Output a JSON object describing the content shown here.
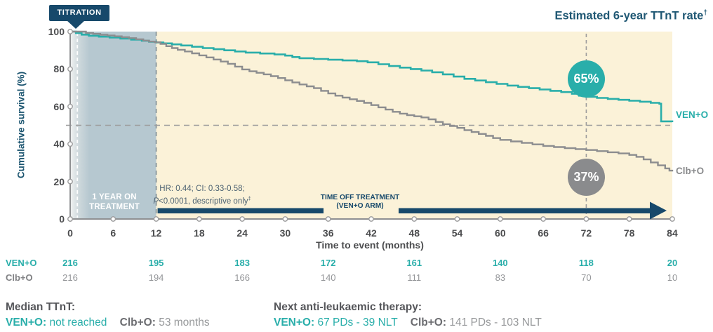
{
  "header": {
    "titration_label": "TITRATION",
    "estimate_title": "Estimated 6-year TTnT rate",
    "estimate_title_sup": "†"
  },
  "chart_data": {
    "type": "line",
    "subtype": "kaplan-meier-step",
    "title": "Estimated 6-year TTnT rate†",
    "xlabel": "Time to event (months)",
    "ylabel": "Cumulative survival (%)",
    "xlim": [
      0,
      84
    ],
    "ylim": [
      0,
      100
    ],
    "x_ticks": [
      0,
      6,
      12,
      18,
      24,
      30,
      36,
      42,
      48,
      54,
      60,
      66,
      72,
      78,
      84
    ],
    "y_ticks": [
      0,
      20,
      40,
      60,
      80,
      100
    ],
    "grid": false,
    "legend_position": "right-of-curves",
    "series": [
      {
        "name": "VEN+O",
        "color": "#29aeaa",
        "estimated_6yr_rate": "65%",
        "points": [
          [
            0,
            100
          ],
          [
            0.8,
            99.2
          ],
          [
            1.6,
            98.4
          ],
          [
            2.6,
            97.8
          ],
          [
            4,
            97.3
          ],
          [
            5.5,
            96.8
          ],
          [
            7,
            96.3
          ],
          [
            8.5,
            95.7
          ],
          [
            10,
            95.1
          ],
          [
            11,
            94.6
          ],
          [
            12,
            94.2
          ],
          [
            13,
            93.7
          ],
          [
            14.2,
            93.2
          ],
          [
            15.5,
            92.6
          ],
          [
            17,
            91.9
          ],
          [
            18.5,
            91.2
          ],
          [
            20,
            90.6
          ],
          [
            21.5,
            90
          ],
          [
            23,
            89.4
          ],
          [
            24.5,
            88.8
          ],
          [
            26.5,
            88.3
          ],
          [
            28.5,
            87.8
          ],
          [
            30,
            87.2
          ],
          [
            31,
            86.4
          ],
          [
            32,
            85.8
          ],
          [
            34,
            85.4
          ],
          [
            36,
            85
          ],
          [
            38,
            84.6
          ],
          [
            40,
            84.2
          ],
          [
            41.5,
            83.6
          ],
          [
            43,
            82.6
          ],
          [
            44.5,
            81.6
          ],
          [
            46,
            80.8
          ],
          [
            47.5,
            80
          ],
          [
            49,
            79.2
          ],
          [
            50.5,
            78.3
          ],
          [
            52,
            77.2
          ],
          [
            53.5,
            76
          ],
          [
            55,
            74.8
          ],
          [
            56.5,
            73.9
          ],
          [
            58,
            73
          ],
          [
            59.5,
            72.1
          ],
          [
            61,
            71.2
          ],
          [
            62.5,
            70.5
          ],
          [
            64,
            69.8
          ],
          [
            65.5,
            69.1
          ],
          [
            67,
            68.4
          ],
          [
            68.5,
            67.7
          ],
          [
            70,
            66.8
          ],
          [
            71,
            65.8
          ],
          [
            72,
            65.2
          ],
          [
            73.5,
            64.6
          ],
          [
            75,
            64.1
          ],
          [
            76.5,
            63.6
          ],
          [
            78,
            63.1
          ],
          [
            79.5,
            62.6
          ],
          [
            81,
            62
          ],
          [
            82.2,
            61.5
          ],
          [
            82.45,
            52.1
          ],
          [
            84,
            51.7
          ]
        ]
      },
      {
        "name": "Clb+O",
        "color": "#8c8d8f",
        "estimated_6yr_rate": "37%",
        "points": [
          [
            0,
            100
          ],
          [
            2.2,
            99.3
          ],
          [
            3.2,
            98.8
          ],
          [
            4.2,
            98.3
          ],
          [
            5.2,
            97.9
          ],
          [
            6.2,
            97.5
          ],
          [
            7.2,
            97
          ],
          [
            8.2,
            96.5
          ],
          [
            9.2,
            95.9
          ],
          [
            10.2,
            95.2
          ],
          [
            11,
            94.7
          ],
          [
            11.8,
            94.3
          ],
          [
            12.6,
            93.4
          ],
          [
            13.4,
            92.2
          ],
          [
            14.2,
            91.2
          ],
          [
            15,
            90.3
          ],
          [
            16,
            89.4
          ],
          [
            17,
            88.4
          ],
          [
            18,
            87.3
          ],
          [
            19,
            86.2
          ],
          [
            20,
            85.1
          ],
          [
            21,
            84
          ],
          [
            22,
            82.8
          ],
          [
            23,
            81.3
          ],
          [
            24,
            79.8
          ],
          [
            25,
            78.8
          ],
          [
            26,
            78
          ],
          [
            27,
            77.2
          ],
          [
            28,
            76.2
          ],
          [
            29,
            75.2
          ],
          [
            30,
            74
          ],
          [
            31,
            72.9
          ],
          [
            32,
            71.8
          ],
          [
            33,
            70.8
          ],
          [
            34,
            69.8
          ],
          [
            35,
            68.4
          ],
          [
            36,
            67
          ],
          [
            37,
            65.8
          ],
          [
            38,
            64.8
          ],
          [
            39,
            63.9
          ],
          [
            40,
            63
          ],
          [
            41,
            62
          ],
          [
            42,
            60.8
          ],
          [
            43,
            59.6
          ],
          [
            44,
            58.4
          ],
          [
            45,
            57.2
          ],
          [
            46,
            56.2
          ],
          [
            47,
            55.4
          ],
          [
            48,
            54.8
          ],
          [
            49,
            54.2
          ],
          [
            50,
            53.2
          ],
          [
            51,
            51.8
          ],
          [
            52,
            50.6
          ],
          [
            53,
            49.6
          ],
          [
            54,
            48.6
          ],
          [
            55,
            47.4
          ],
          [
            56,
            46.4
          ],
          [
            57,
            45.4
          ],
          [
            58,
            44.4
          ],
          [
            59,
            43.2
          ],
          [
            60,
            42.2
          ],
          [
            61.5,
            41.4
          ],
          [
            63,
            40.6
          ],
          [
            64.5,
            39.8
          ],
          [
            66,
            39
          ],
          [
            67.5,
            38.4
          ],
          [
            69,
            37.8
          ],
          [
            70.5,
            37.3
          ],
          [
            72,
            36.8
          ],
          [
            73.5,
            36.2
          ],
          [
            75,
            35.6
          ],
          [
            76.5,
            35
          ],
          [
            78,
            34.2
          ],
          [
            79,
            33.2
          ],
          [
            80,
            31.8
          ],
          [
            81,
            30.2
          ],
          [
            82,
            28.6
          ],
          [
            83,
            27
          ],
          [
            83.6,
            25.8
          ],
          [
            84,
            25.4
          ]
        ]
      }
    ],
    "annotations": {
      "median_reference_line_pct": 50,
      "vertical_reference_month": 72,
      "badges": [
        {
          "label": "65%",
          "color": "#29aeaa",
          "month": 72,
          "pct": 75
        },
        {
          "label": "37%",
          "color": "#8a8b8d",
          "month": 72,
          "pct": 22.5
        }
      ],
      "titration_region": {
        "from_month": 0,
        "to_month": 12,
        "label_line1": "1 YEAR ON",
        "label_line2": "TREATMENT"
      },
      "hr_line1": "HR: 0.44; CI: 0.33-0.58;",
      "hr_line2_p": "P",
      "hr_line2_rest": "<0.0001, descriptive only",
      "hr_line2_sup": "‡",
      "arrow_label_line1": "TIME OFF TREATMENT",
      "arrow_label_line2": "(VEN+O ARM)",
      "arrow_from_month": 12,
      "arrow_to_month": 83
    }
  },
  "risk_table": {
    "months": [
      0,
      12,
      24,
      36,
      48,
      60,
      72,
      84
    ],
    "rows": [
      {
        "label": "VEN+O",
        "values": [
          216,
          195,
          183,
          172,
          161,
          140,
          118,
          20
        ]
      },
      {
        "label": "Clb+O",
        "values": [
          216,
          194,
          166,
          140,
          111,
          83,
          70,
          10
        ]
      }
    ]
  },
  "footnotes": {
    "median": {
      "heading": "Median TTnT:",
      "ven_label": "VEN+O:",
      "ven_value": "not reached",
      "clb_label": "Clb+O:",
      "clb_value": "53 months"
    },
    "nlt": {
      "heading": "Next anti-leukaemic therapy:",
      "ven_label": "VEN+O:",
      "ven_value": "67 PDs - 39 NLT",
      "clb_label": "Clb+O:",
      "clb_value": "141 PDs - 103 NLT"
    }
  },
  "colors": {
    "navy": "#17496b",
    "title_navy": "#205874",
    "teal": "#29aeaa",
    "gray_curve": "#8c8d8f",
    "plot_bg": "#fbf2d8",
    "shade": "#b6c8d0",
    "dash_gray": "#9c9c9c",
    "axis_gray": "#8f9092",
    "tick_text": "#4c4d4f"
  }
}
